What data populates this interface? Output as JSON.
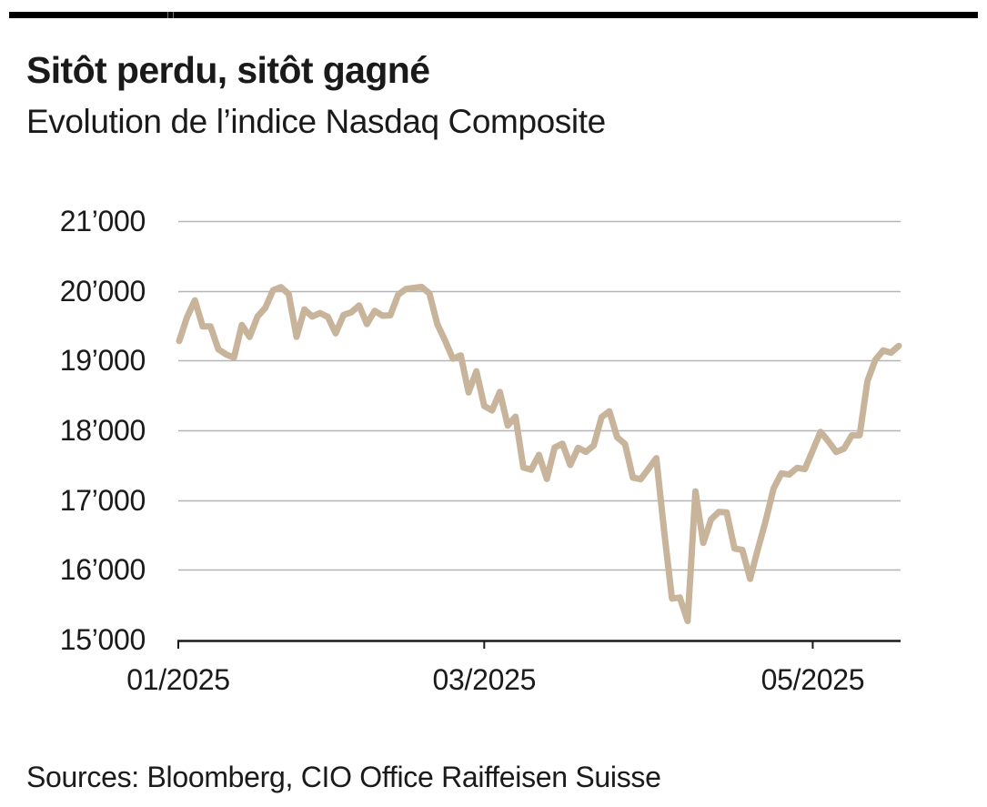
{
  "top_bar": {
    "color": "#000000"
  },
  "header": {
    "title": "Sitôt perdu, sitôt gagné",
    "subtitle": "Evolution de l’indice Nasdaq Composite"
  },
  "footer": {
    "sources": "Sources: Bloomberg, CIO Office Raiffeisen Suisse"
  },
  "chart_data": {
    "type": "line",
    "title": "Sitôt perdu, sitôt gagné",
    "subtitle": "Evolution de l’indice Nasdaq Composite",
    "ylim": [
      15000,
      21000
    ],
    "grid": "horizontal",
    "legend": "none",
    "line_color": "#c8b49b",
    "grid_color": "#b5b5b5",
    "axis_color": "#1a1a1a",
    "y_ticks": [
      {
        "value": 21000,
        "label": "21’000"
      },
      {
        "value": 20000,
        "label": "20’000"
      },
      {
        "value": 19000,
        "label": "19’000"
      },
      {
        "value": 18000,
        "label": "18’000"
      },
      {
        "value": 17000,
        "label": "17’000"
      },
      {
        "value": 16000,
        "label": "16’000"
      },
      {
        "value": 15000,
        "label": "15’000"
      }
    ],
    "x_ticks": [
      {
        "month": 1,
        "label": "01/2025"
      },
      {
        "month": 3,
        "label": "03/2025"
      },
      {
        "month": 5,
        "label": "05/2025"
      }
    ],
    "series": [
      {
        "name": "Nasdaq Composite",
        "dates": [
          "2025-01-02",
          "2025-01-03",
          "2025-01-06",
          "2025-01-07",
          "2025-01-08",
          "2025-01-10",
          "2025-01-13",
          "2025-01-14",
          "2025-01-15",
          "2025-01-16",
          "2025-01-17",
          "2025-01-21",
          "2025-01-22",
          "2025-01-23",
          "2025-01-24",
          "2025-01-27",
          "2025-01-28",
          "2025-01-29",
          "2025-01-30",
          "2025-01-31",
          "2025-02-03",
          "2025-02-04",
          "2025-02-05",
          "2025-02-06",
          "2025-02-07",
          "2025-02-10",
          "2025-02-11",
          "2025-02-12",
          "2025-02-13",
          "2025-02-14",
          "2025-02-18",
          "2025-02-19",
          "2025-02-20",
          "2025-02-21",
          "2025-02-24",
          "2025-02-25",
          "2025-02-26",
          "2025-02-27",
          "2025-02-28",
          "2025-03-03",
          "2025-03-04",
          "2025-03-05",
          "2025-03-06",
          "2025-03-07",
          "2025-03-10",
          "2025-03-11",
          "2025-03-12",
          "2025-03-13",
          "2025-03-14",
          "2025-03-17",
          "2025-03-18",
          "2025-03-19",
          "2025-03-20",
          "2025-03-21",
          "2025-03-24",
          "2025-03-25",
          "2025-03-26",
          "2025-03-27",
          "2025-03-28",
          "2025-03-31",
          "2025-04-01",
          "2025-04-02",
          "2025-04-03",
          "2025-04-04",
          "2025-04-07",
          "2025-04-08",
          "2025-04-09",
          "2025-04-10",
          "2025-04-11",
          "2025-04-14",
          "2025-04-15",
          "2025-04-16",
          "2025-04-17",
          "2025-04-21",
          "2025-04-22",
          "2025-04-23",
          "2025-04-24",
          "2025-04-25",
          "2025-04-28",
          "2025-04-29",
          "2025-04-30",
          "2025-05-01",
          "2025-05-02",
          "2025-05-05",
          "2025-05-06",
          "2025-05-07",
          "2025-05-08",
          "2025-05-09",
          "2025-05-12",
          "2025-05-13",
          "2025-05-14",
          "2025-05-15",
          "2025-05-16"
        ],
        "values": [
          19281,
          19622,
          19864,
          19489,
          19489,
          19162,
          19088,
          19044,
          19511,
          19338,
          19630,
          19756,
          20009,
          20053,
          19954,
          19341,
          19733,
          19632,
          19681,
          19627,
          19391,
          19654,
          19692,
          19791,
          19523,
          19714,
          19644,
          19650,
          19945,
          20027,
          20041,
          20056,
          19962,
          19524,
          19286,
          19026,
          19075,
          18544,
          18847,
          18350,
          18285,
          18552,
          18069,
          18196,
          17468,
          17436,
          17648,
          17303,
          17754,
          17808,
          17504,
          17750,
          17691,
          17784,
          18189,
          18272,
          17899,
          17804,
          17323,
          17299,
          17450,
          17601,
          16551,
          15588,
          15603,
          15268,
          17125,
          16387,
          16724,
          16831,
          16823,
          16307,
          16286,
          15871,
          16300,
          16708,
          17166,
          17383,
          17366,
          17461,
          17446,
          17710,
          17978,
          17844,
          17690,
          17738,
          17928,
          17929,
          18708,
          19010,
          19146,
          19112,
          19211
        ]
      }
    ]
  }
}
